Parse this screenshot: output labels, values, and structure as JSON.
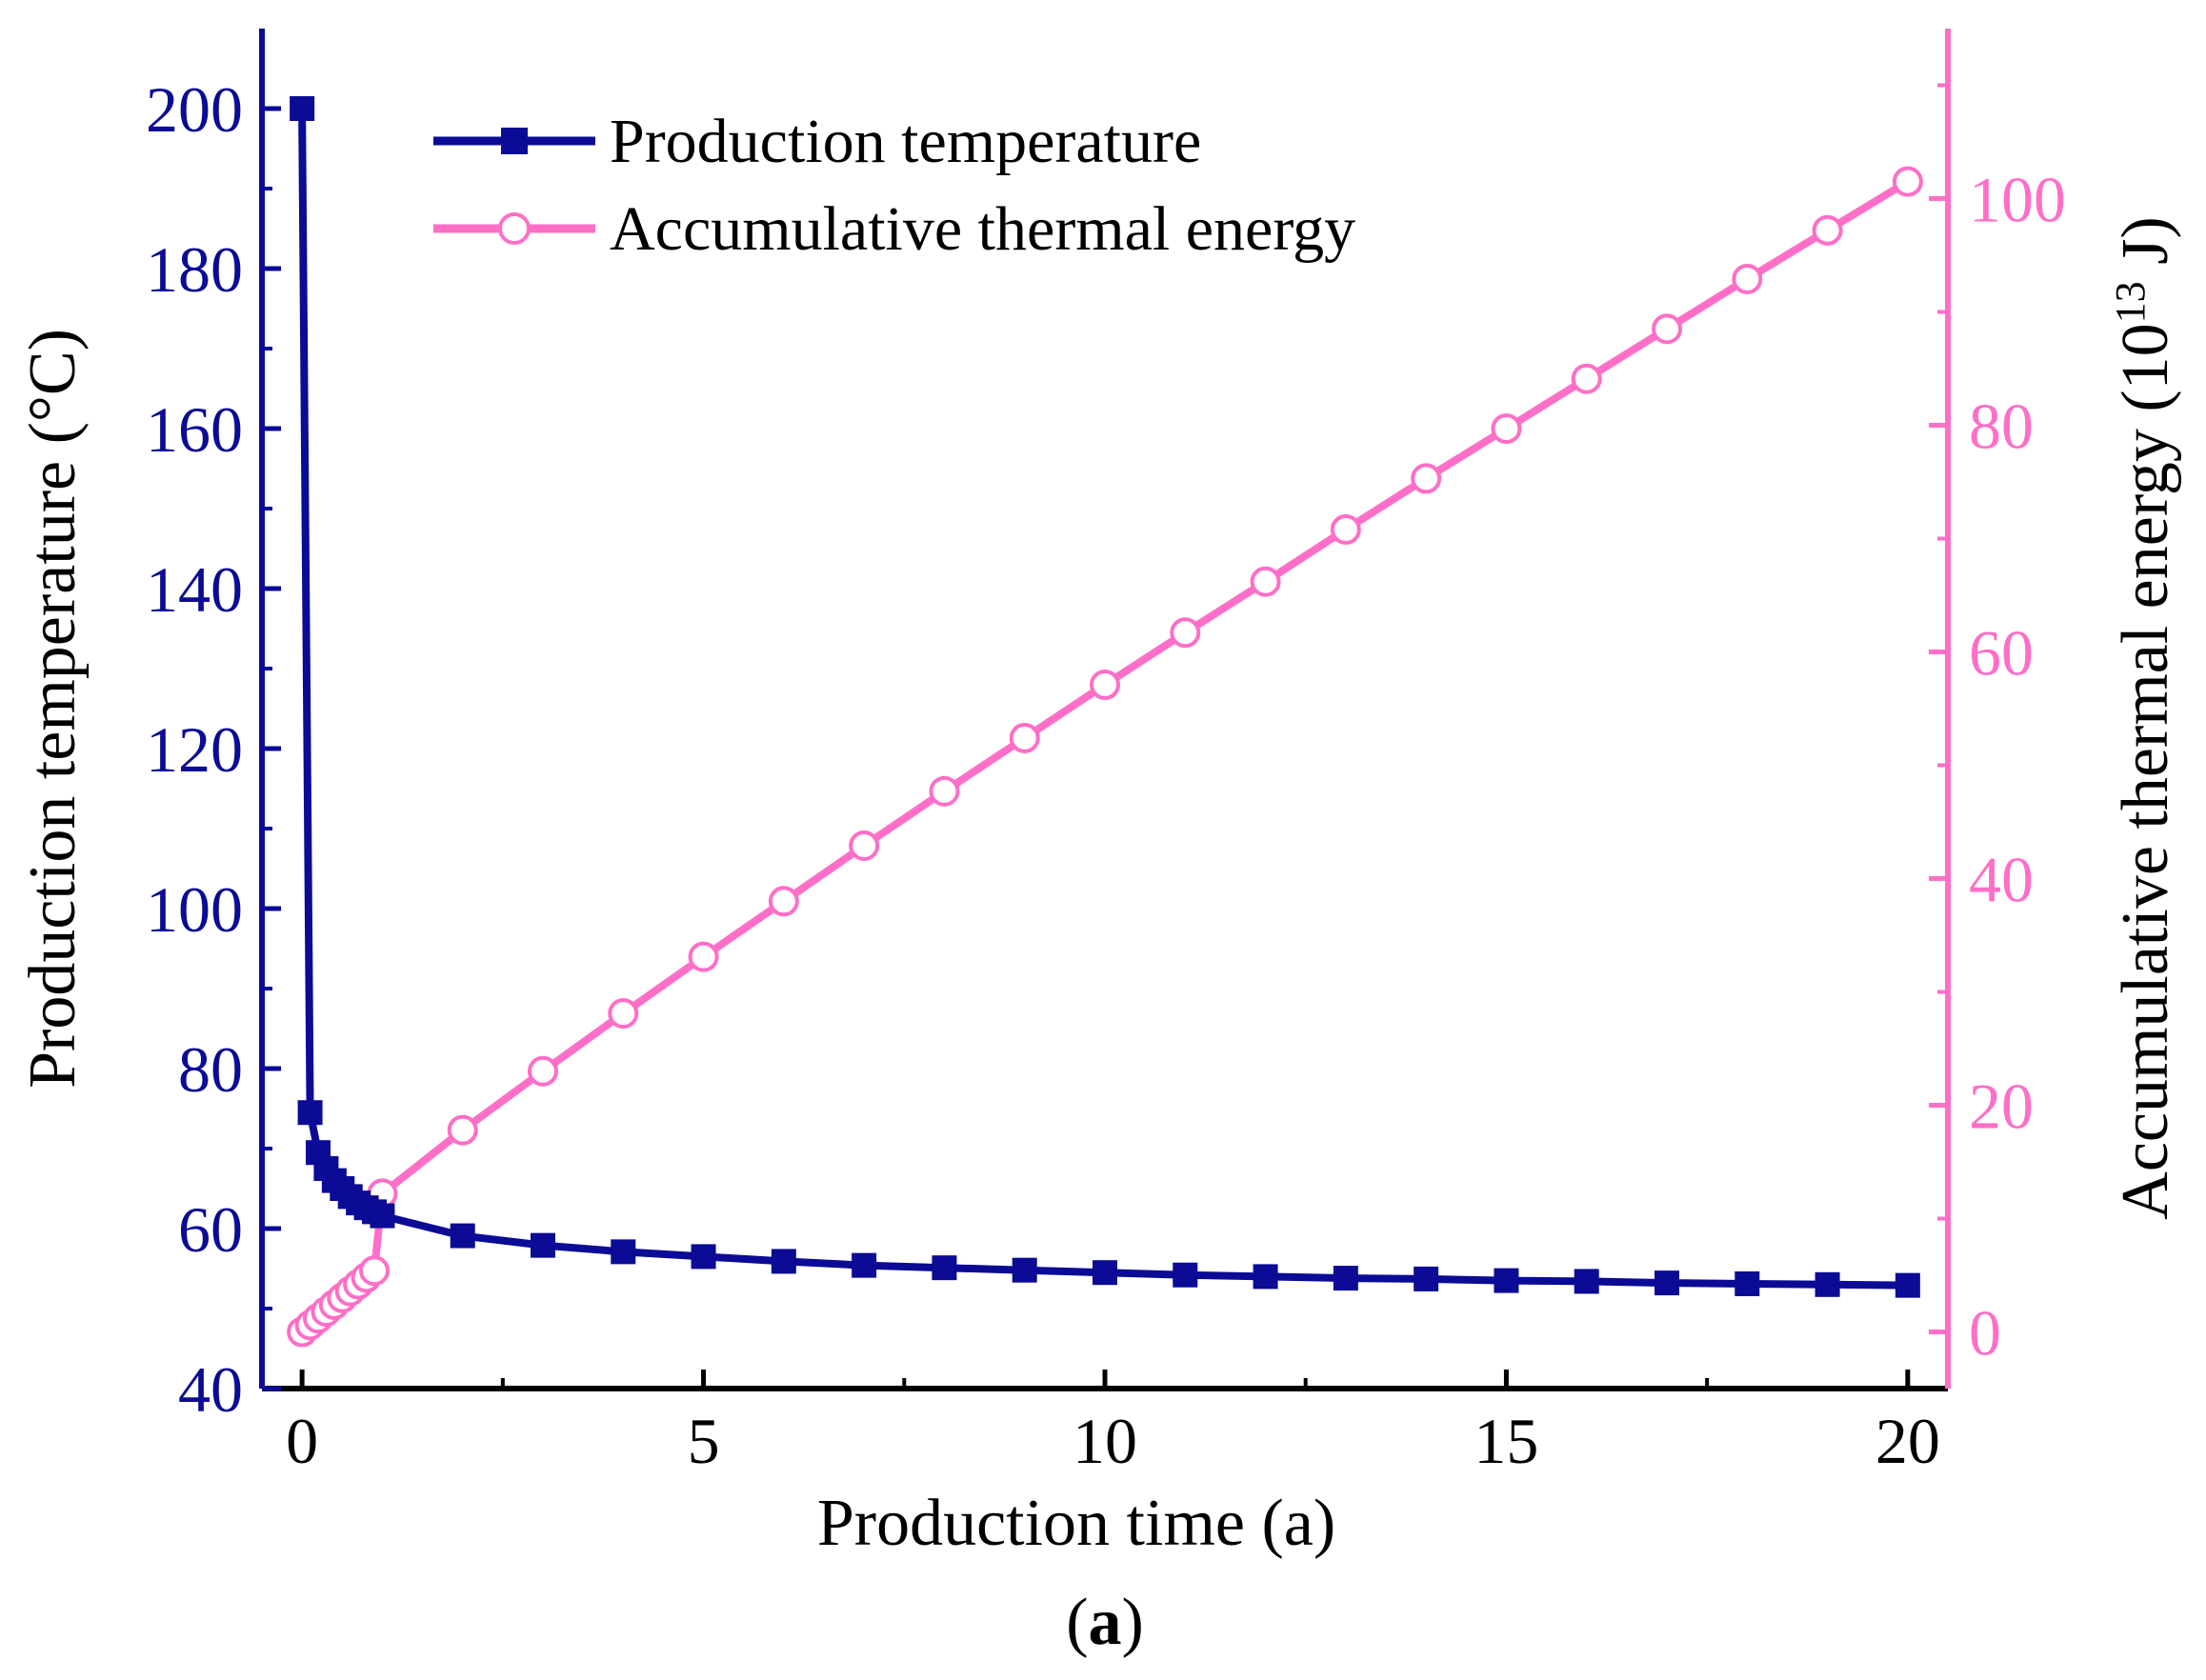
{
  "chart_data": {
    "type": "line",
    "caption_open": "(",
    "caption_letter": "a",
    "caption_close": ")",
    "xlabel": "Production time (a)",
    "ylabel_left": "Production temperature (°C)",
    "ylabel_right_base": "Accumulative thermal energy (10",
    "ylabel_right_exp": "13",
    "ylabel_right_unit": " J)",
    "xlim": [
      -0.5,
      20.5
    ],
    "ylim_left": [
      40,
      210
    ],
    "ylim_right": [
      -5,
      115
    ],
    "x_ticks": [
      0,
      5,
      10,
      15,
      20
    ],
    "x_minor_ticks": [
      2.5,
      7.5,
      12.5,
      17.5
    ],
    "y_left_ticks": [
      40,
      60,
      80,
      100,
      120,
      140,
      160,
      180,
      200
    ],
    "y_left_minor_ticks": [
      50,
      70,
      90,
      110,
      130,
      150,
      170,
      190
    ],
    "y_right_ticks": [
      0,
      20,
      40,
      60,
      80,
      100
    ],
    "y_right_minor_ticks": [
      10,
      30,
      50,
      70,
      90,
      110
    ],
    "series": [
      {
        "name": "Production temperature",
        "axis": "left",
        "color": "#0b0b96",
        "marker": "square",
        "x": [
          0,
          0.1,
          0.2,
          0.3,
          0.4,
          0.5,
          0.6,
          0.7,
          0.8,
          0.9,
          1,
          2,
          3,
          4,
          5,
          6,
          7,
          8,
          9,
          10,
          11,
          12,
          13,
          14,
          15,
          16,
          17,
          18,
          19,
          20
        ],
        "y": [
          200,
          74.5,
          69.5,
          67.5,
          66,
          65,
          64,
          63.2,
          62.6,
          62.1,
          61.6,
          59.1,
          57.9,
          57.1,
          56.5,
          55.9,
          55.4,
          55.1,
          54.8,
          54.5,
          54.2,
          54.0,
          53.8,
          53.7,
          53.5,
          53.4,
          53.2,
          53.1,
          53.0,
          52.9
        ]
      },
      {
        "name": "Accumulative thermal energy",
        "axis": "right",
        "color": "#ff6ec7",
        "marker": "circle",
        "x": [
          0,
          0.1,
          0.2,
          0.3,
          0.4,
          0.5,
          0.6,
          0.7,
          0.8,
          0.9,
          1,
          2,
          3,
          4,
          5,
          6,
          7,
          8,
          9,
          10,
          11,
          12,
          13,
          14,
          15,
          16,
          17,
          18,
          19,
          20
        ],
        "y": [
          0,
          0.6,
          1.2,
          1.8,
          2.4,
          3.0,
          3.6,
          4.2,
          4.8,
          5.4,
          12.2,
          17.8,
          23.0,
          28.1,
          33.1,
          38.0,
          42.9,
          47.7,
          52.4,
          57.1,
          61.7,
          66.2,
          70.8,
          75.3,
          79.7,
          84.1,
          88.5,
          92.9,
          97.2,
          101.5
        ]
      }
    ]
  },
  "colors": {
    "left_axis": "#0b0b96",
    "right_axis": "#ff6ec7",
    "bottom_axis": "#000000"
  }
}
